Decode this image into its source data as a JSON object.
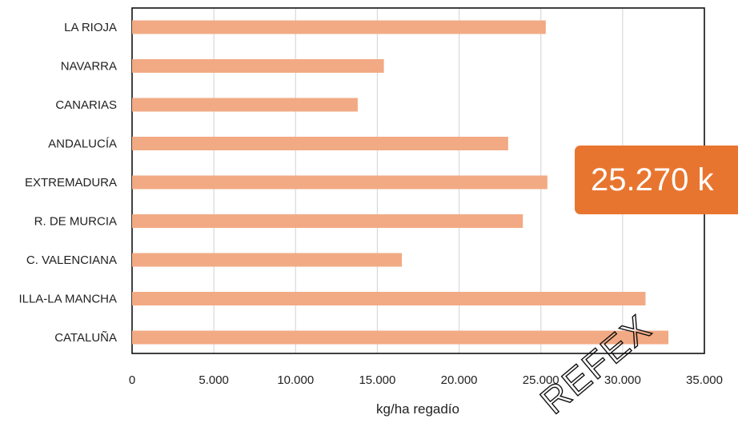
{
  "chart_data": {
    "type": "bar",
    "orientation": "horizontal",
    "categories": [
      "LA RIOJA",
      "NAVARRA",
      "CANARIAS",
      "ANDALUCÍA",
      "EXTREMADURA",
      "R. DE MURCIA",
      "C. VALENCIANA",
      "ILLA-LA MANCHA",
      "CATALUÑA"
    ],
    "values": [
      25300,
      15400,
      13800,
      23000,
      25400,
      23900,
      16500,
      31400,
      32800
    ],
    "xlim": [
      0,
      35000
    ],
    "xticks": [
      "0",
      "5.000",
      "10.000",
      "15.000",
      "20.000",
      "25.000",
      "30.000",
      "35.000"
    ],
    "xlabel": "kg/ha regadío",
    "ylabel": "",
    "title": "",
    "grid": "vertical",
    "bar_color": "#F2AA84"
  },
  "callout": {
    "text": "25.270 k",
    "color": "#E8752F"
  },
  "watermark": {
    "text": "REFEX"
  }
}
